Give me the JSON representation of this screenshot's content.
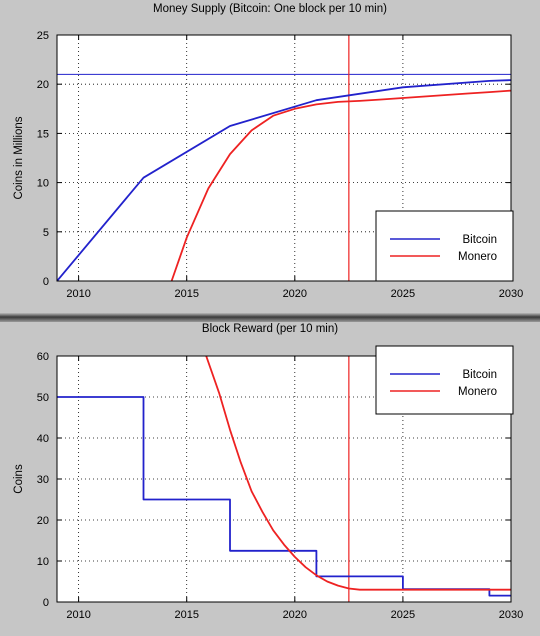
{
  "colors": {
    "bitcoin": "#2222cc",
    "monero": "#ee2222",
    "background": "#c6c6c6",
    "plot": "#ffffff"
  },
  "chart_data": [
    {
      "type": "line",
      "title": "Money Supply (Bitcoin: One block per 10 min)",
      "xlabel": "",
      "ylabel": "Coins in Millions",
      "xlim": [
        2009,
        2030
      ],
      "ylim": [
        0,
        25
      ],
      "xticks": [
        "2010",
        "2015",
        "2020",
        "2025",
        "2030"
      ],
      "yticks": [
        "0",
        "5",
        "10",
        "15",
        "20",
        "25"
      ],
      "grid": true,
      "legend_position": "bottom-right",
      "vline": 2022.5,
      "hline": 21,
      "series": [
        {
          "name": "Bitcoin",
          "color": "#2222cc",
          "x": [
            2009,
            2013,
            2017,
            2021,
            2025,
            2029,
            2030
          ],
          "y": [
            0,
            10.5,
            15.75,
            18.375,
            19.6875,
            20.34,
            20.42
          ]
        },
        {
          "name": "Monero",
          "color": "#ee2222",
          "x": [
            2014.3,
            2015,
            2016,
            2017,
            2018,
            2019,
            2020,
            2021,
            2022,
            2023,
            2024,
            2025,
            2026,
            2027,
            2028,
            2029,
            2030
          ],
          "y": [
            0,
            4.4,
            9.4,
            12.9,
            15.3,
            16.8,
            17.5,
            17.95,
            18.2,
            18.3,
            18.45,
            18.6,
            18.75,
            18.9,
            19.05,
            19.2,
            19.35
          ]
        }
      ]
    },
    {
      "type": "line",
      "title": "Block Reward (per 10 min)",
      "xlabel": "",
      "ylabel": "Coins",
      "xlim": [
        2009,
        2030
      ],
      "ylim": [
        0,
        60
      ],
      "xticks": [
        "2010",
        "2015",
        "2020",
        "2025",
        "2030"
      ],
      "yticks": [
        "0",
        "10",
        "20",
        "30",
        "40",
        "50",
        "60"
      ],
      "grid": true,
      "legend_position": "top-right",
      "vline": 2022.5,
      "series": [
        {
          "name": "Bitcoin",
          "color": "#2222cc",
          "step": true,
          "x": [
            2009,
            2013,
            2013,
            2017,
            2017,
            2021,
            2021,
            2025,
            2025,
            2029,
            2029,
            2030
          ],
          "y": [
            50,
            50,
            25,
            25,
            12.5,
            12.5,
            6.25,
            6.25,
            3.125,
            3.125,
            1.5625,
            1.5625
          ]
        },
        {
          "name": "Monero",
          "color": "#ee2222",
          "x": [
            2015.9,
            2016.5,
            2017,
            2017.5,
            2018,
            2018.5,
            2019,
            2019.5,
            2020,
            2020.5,
            2021,
            2021.5,
            2022,
            2022.5,
            2023,
            2024,
            2025,
            2026,
            2027,
            2028,
            2029,
            2030
          ],
          "y": [
            60,
            51,
            42,
            34,
            27,
            22,
            17.5,
            14,
            11,
            8.5,
            6.5,
            5.0,
            4.0,
            3.3,
            3.0,
            3.0,
            3.0,
            3.0,
            3.0,
            3.0,
            3.0,
            3.0
          ]
        }
      ]
    }
  ]
}
